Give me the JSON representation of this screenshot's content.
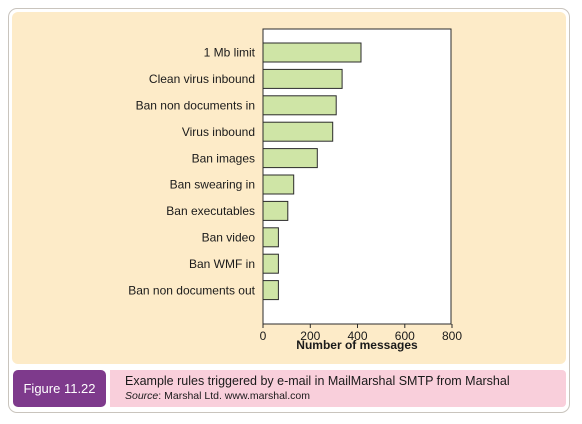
{
  "chart_data": {
    "type": "bar",
    "orientation": "horizontal",
    "categories": [
      "1 Mb limit",
      "Clean virus inbound",
      "Ban non documents in",
      "Virus inbound",
      "Ban images",
      "Ban swearing in",
      "Ban executables",
      "Ban video",
      "Ban WMF in",
      "Ban non documents out"
    ],
    "values": [
      415,
      335,
      310,
      295,
      230,
      130,
      105,
      65,
      65,
      65
    ],
    "xlabel": "Number of messages",
    "ylabel": "",
    "xlim": [
      0,
      800
    ],
    "xticks": [
      "0",
      "200",
      "400",
      "600",
      "800"
    ],
    "grid": false,
    "colors": {
      "bar_fill": "#cfe5a6",
      "bar_stroke": "#2b2b2b",
      "panel_bg": "#fdebc8",
      "plot_bg": "#ffffff"
    }
  },
  "caption": {
    "figure_label": "Figure 11.22",
    "text": "Example rules triggered by e-mail in MailMarshal SMTP from Marshal",
    "source_label": "Source",
    "source_text": ": Marshal Ltd. www.marshal.com",
    "colors": {
      "label_bg": "#7e3a8c",
      "bar_bg": "#f9cfdb"
    }
  }
}
